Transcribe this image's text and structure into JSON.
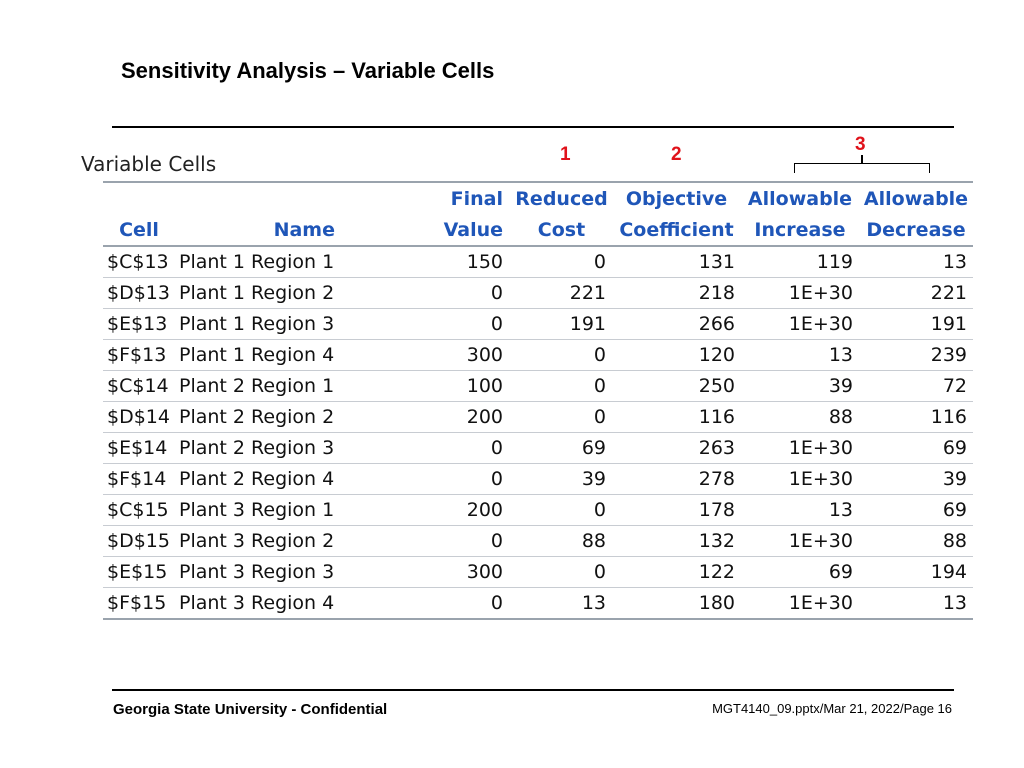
{
  "slide": {
    "title": "Sensitivity Analysis – Variable Cells",
    "section_label": "Variable Cells",
    "markers": [
      "1",
      "2",
      "3"
    ],
    "marker_color": "#e0121a"
  },
  "table": {
    "header_color": "#1f56b8",
    "header_row1": [
      "",
      "",
      "Final",
      "Reduced",
      "Objective",
      "Allowable",
      "Allowable"
    ],
    "header_row2": [
      "Cell",
      "Name",
      "Value",
      "Cost",
      "Coefficient",
      "Increase",
      "Decrease"
    ],
    "rows": [
      [
        "$C$13",
        "Plant 1 Region 1",
        "150",
        "0",
        "131",
        "119",
        "13"
      ],
      [
        "$D$13",
        "Plant 1 Region 2",
        "0",
        "221",
        "218",
        "1E+30",
        "221"
      ],
      [
        "$E$13",
        "Plant 1 Region 3",
        "0",
        "191",
        "266",
        "1E+30",
        "191"
      ],
      [
        "$F$13",
        "Plant 1 Region 4",
        "300",
        "0",
        "120",
        "13",
        "239"
      ],
      [
        "$C$14",
        "Plant 2 Region 1",
        "100",
        "0",
        "250",
        "39",
        "72"
      ],
      [
        "$D$14",
        "Plant 2 Region 2",
        "200",
        "0",
        "116",
        "88",
        "116"
      ],
      [
        "$E$14",
        "Plant 2 Region 3",
        "0",
        "69",
        "263",
        "1E+30",
        "69"
      ],
      [
        "$F$14",
        "Plant 2 Region 4",
        "0",
        "39",
        "278",
        "1E+30",
        "39"
      ],
      [
        "$C$15",
        "Plant 3 Region 1",
        "200",
        "0",
        "178",
        "13",
        "69"
      ],
      [
        "$D$15",
        "Plant 3 Region 2",
        "0",
        "88",
        "132",
        "1E+30",
        "88"
      ],
      [
        "$E$15",
        "Plant 3 Region 3",
        "300",
        "0",
        "122",
        "69",
        "194"
      ],
      [
        "$F$15",
        "Plant 3 Region 4",
        "0",
        "13",
        "180",
        "1E+30",
        "13"
      ]
    ]
  },
  "footer": {
    "left": "Georgia State University - Confidential",
    "right": "MGT4140_09.pptx/Mar 21, 2022/Page 16"
  }
}
